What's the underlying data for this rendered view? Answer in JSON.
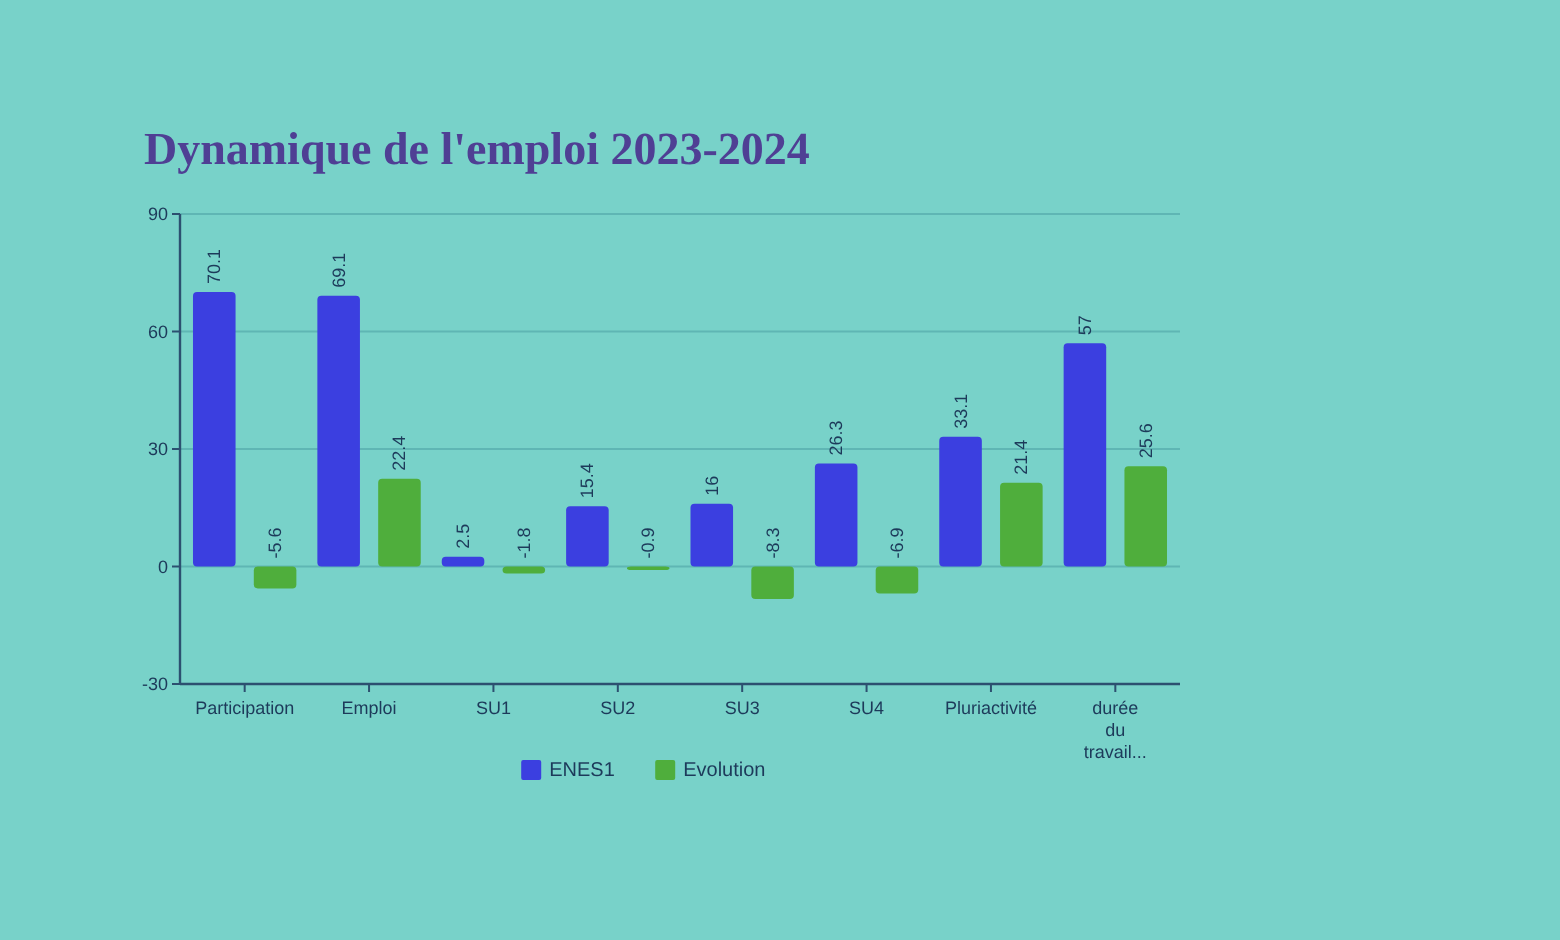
{
  "chart_data": {
    "type": "bar",
    "title": "Dynamique de l'emploi 2023-2024",
    "categories": [
      "Participation",
      "Emploi",
      "SU1",
      "SU2",
      "SU3",
      "SU4",
      "Pluriactivité",
      "durée du travail..."
    ],
    "series": [
      {
        "name": "ENES1",
        "color": "#3b3fe0",
        "values": [
          70.1,
          69.1,
          2.5,
          15.4,
          16,
          26.3,
          33.1,
          57
        ]
      },
      {
        "name": "Evolution",
        "color": "#4fae3c",
        "values": [
          -5.6,
          22.4,
          -1.8,
          -0.9,
          -8.3,
          -6.9,
          21.4,
          25.6
        ]
      }
    ],
    "ylim": [
      -30,
      90
    ],
    "yticks": [
      -30,
      0,
      30,
      60,
      90
    ],
    "grid": "y",
    "legend": "bottom",
    "data_labels": true
  }
}
